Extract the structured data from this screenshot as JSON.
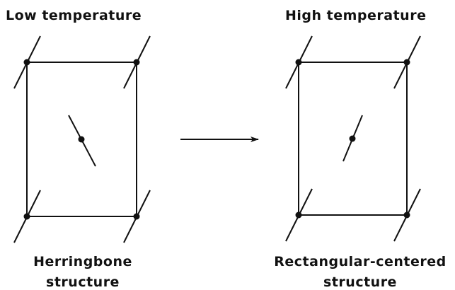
{
  "left": {
    "title": "Low temperature",
    "caption": [
      "Herringbone",
      "structure"
    ]
  },
  "right": {
    "title": "High temperature",
    "caption": [
      "Rectangular-centered",
      "structure"
    ]
  }
}
